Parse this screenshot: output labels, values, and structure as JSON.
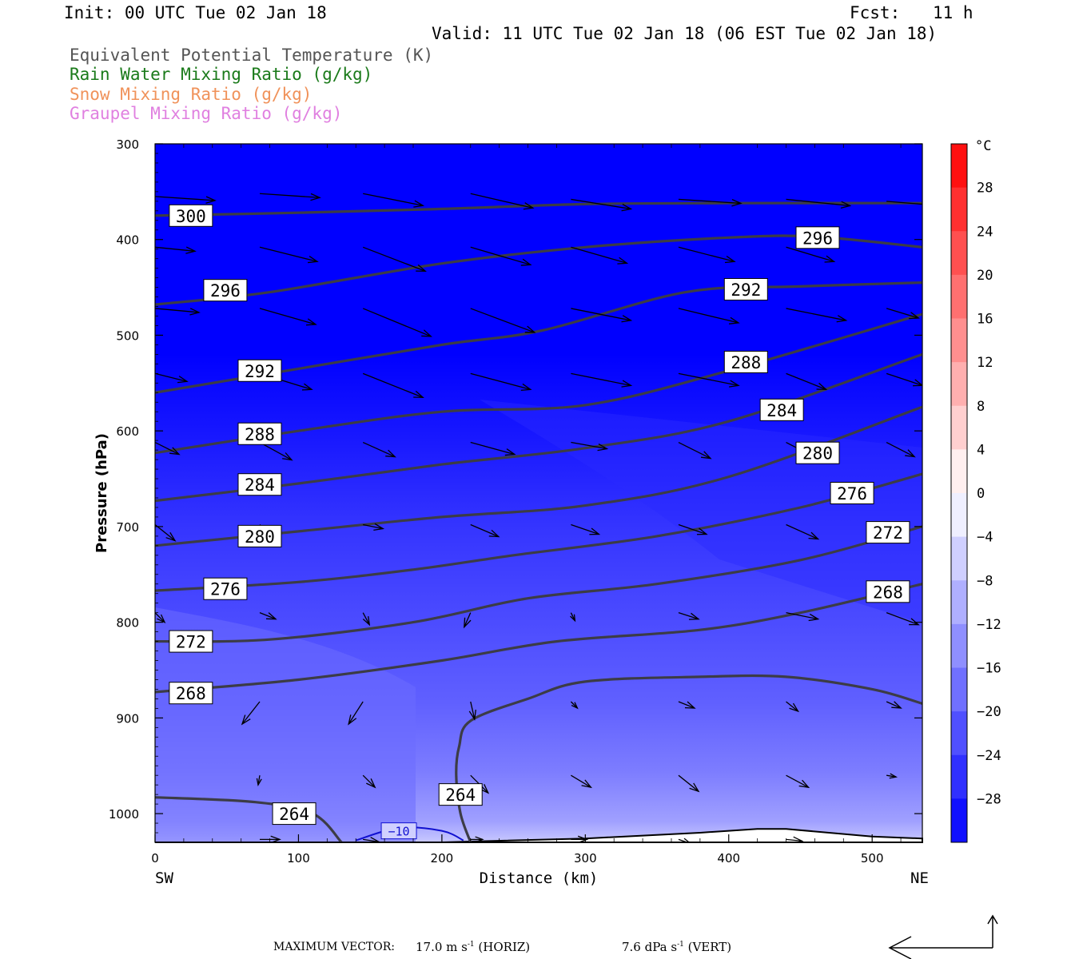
{
  "header": {
    "init": "Init: 00 UTC Tue 02 Jan 18",
    "fcst_label": "Fcst:",
    "fcst_value": "11 h",
    "valid": "Valid: 11 UTC Tue 02 Jan 18 (06 EST Tue 02 Jan 18)"
  },
  "fields": [
    {
      "label": "Equivalent Potential Temperature (K)",
      "color": "#555555"
    },
    {
      "label": "Rain Water Mixing Ratio (g/kg)",
      "color": "#1a7a1a"
    },
    {
      "label": "Snow Mixing Ratio (g/kg)",
      "color": "#f0925a"
    },
    {
      "label": "Graupel Mixing Ratio (g/kg)",
      "color": "#e080e0"
    }
  ],
  "footer": {
    "max_vector_label": "MAXIMUM VECTOR:",
    "horiz_value": "17.0 m s",
    "horiz_unit": "(HORIZ)",
    "vert_value": "7.6 dPa s",
    "vert_unit": "(VERT)",
    "exponent": "-1"
  },
  "chart_data": {
    "type": "contour",
    "xlabel": "Distance (km)",
    "ylabel": "Pressure (hPa)",
    "xlim": [
      0,
      535
    ],
    "ylim": [
      1030,
      300
    ],
    "x_ticks": [
      0,
      100,
      200,
      300,
      400,
      500
    ],
    "y_ticks": [
      300,
      400,
      500,
      600,
      700,
      800,
      900,
      1000
    ],
    "x_end_labels": {
      "left": "SW",
      "right": "NE"
    },
    "colorbar": {
      "unit": "°C",
      "labels": [
        28,
        24,
        20,
        16,
        12,
        8,
        4,
        0,
        -4,
        -8,
        -12,
        -16,
        -20,
        -24,
        -28
      ],
      "min": -32,
      "max": 32,
      "step": 4
    },
    "theta_e_contours": [
      {
        "value": 300,
        "points": [
          [
            0,
            375
          ],
          [
            100,
            372
          ],
          [
            200,
            368
          ],
          [
            300,
            363
          ],
          [
            400,
            362
          ],
          [
            535,
            362
          ]
        ]
      },
      {
        "value": 296,
        "points": [
          [
            0,
            468
          ],
          [
            80,
            455
          ],
          [
            200,
            425
          ],
          [
            300,
            408
          ],
          [
            400,
            398
          ],
          [
            460,
            397
          ],
          [
            535,
            408
          ]
        ]
      },
      {
        "value": 292,
        "points": [
          [
            0,
            560
          ],
          [
            100,
            535
          ],
          [
            200,
            510
          ],
          [
            270,
            495
          ],
          [
            370,
            455
          ],
          [
            450,
            449
          ],
          [
            535,
            445
          ]
        ]
      },
      {
        "value": 288,
        "points": [
          [
            0,
            623
          ],
          [
            100,
            600
          ],
          [
            200,
            580
          ],
          [
            300,
            573
          ],
          [
            400,
            537
          ],
          [
            535,
            478
          ]
        ]
      },
      {
        "value": 284,
        "points": [
          [
            0,
            673
          ],
          [
            100,
            655
          ],
          [
            200,
            635
          ],
          [
            300,
            618
          ],
          [
            400,
            590
          ],
          [
            535,
            520
          ]
        ]
      },
      {
        "value": 280,
        "points": [
          [
            0,
            720
          ],
          [
            100,
            705
          ],
          [
            200,
            690
          ],
          [
            300,
            678
          ],
          [
            400,
            648
          ],
          [
            535,
            575
          ]
        ]
      },
      {
        "value": 276,
        "points": [
          [
            0,
            767
          ],
          [
            100,
            758
          ],
          [
            180,
            745
          ],
          [
            250,
            730
          ],
          [
            350,
            710
          ],
          [
            450,
            680
          ],
          [
            535,
            645
          ]
        ]
      },
      {
        "value": 272,
        "points": [
          [
            0,
            820
          ],
          [
            80,
            818
          ],
          [
            180,
            800
          ],
          [
            260,
            775
          ],
          [
            350,
            760
          ],
          [
            450,
            735
          ],
          [
            535,
            700
          ]
        ]
      },
      {
        "value": 268,
        "points": [
          [
            0,
            873
          ],
          [
            100,
            860
          ],
          [
            200,
            840
          ],
          [
            280,
            820
          ],
          [
            380,
            808
          ],
          [
            450,
            790
          ],
          [
            535,
            760
          ]
        ]
      },
      {
        "value": 264,
        "points": [
          [
            0,
            983
          ],
          [
            70,
            988
          ],
          [
            110,
            1000
          ],
          [
            130,
            1030
          ]
        ]
      },
      {
        "value": 264,
        "points": [
          [
            220,
            1030
          ],
          [
            213,
            1000
          ],
          [
            210,
            960
          ],
          [
            212,
            930
          ],
          [
            220,
            903
          ],
          [
            260,
            880
          ],
          [
            300,
            862
          ],
          [
            380,
            857
          ],
          [
            440,
            857
          ],
          [
            500,
            870
          ],
          [
            535,
            885
          ]
        ]
      }
    ],
    "temp_contours": [
      {
        "value": -10,
        "points": [
          [
            140,
            1028
          ],
          [
            170,
            1015
          ],
          [
            200,
            1018
          ],
          [
            215,
            1028
          ]
        ]
      }
    ],
    "contour_labels": [
      {
        "text": "300",
        "x": 25,
        "y": 375
      },
      {
        "text": "296",
        "x": 49,
        "y": 453
      },
      {
        "text": "296",
        "x": 462,
        "y": 398
      },
      {
        "text": "292",
        "x": 73,
        "y": 537
      },
      {
        "text": "292",
        "x": 412,
        "y": 452
      },
      {
        "text": "288",
        "x": 73,
        "y": 603
      },
      {
        "text": "288",
        "x": 412,
        "y": 528
      },
      {
        "text": "284",
        "x": 73,
        "y": 656
      },
      {
        "text": "284",
        "x": 437,
        "y": 578
      },
      {
        "text": "280",
        "x": 73,
        "y": 710
      },
      {
        "text": "280",
        "x": 462,
        "y": 623
      },
      {
        "text": "276",
        "x": 49,
        "y": 765
      },
      {
        "text": "276",
        "x": 486,
        "y": 665
      },
      {
        "text": "272",
        "x": 25,
        "y": 820
      },
      {
        "text": "272",
        "x": 511,
        "y": 706
      },
      {
        "text": "268",
        "x": 25,
        "y": 874
      },
      {
        "text": "268",
        "x": 511,
        "y": 768
      },
      {
        "text": "264",
        "x": 97,
        "y": 1000
      },
      {
        "text": "264",
        "x": 213,
        "y": 980
      },
      {
        "text": "−10",
        "x": 170,
        "y": 1018
      }
    ],
    "wind_vectors": [
      [
        0,
        355,
        75,
        5
      ],
      [
        73,
        352,
        75,
        5
      ],
      [
        145,
        352,
        75,
        15
      ],
      [
        220,
        352,
        78,
        18
      ],
      [
        290,
        358,
        75,
        12
      ],
      [
        365,
        358,
        78,
        5
      ],
      [
        440,
        358,
        80,
        8
      ],
      [
        510,
        360,
        60,
        5
      ],
      [
        0,
        408,
        50,
        5
      ],
      [
        73,
        408,
        72,
        18
      ],
      [
        145,
        408,
        78,
        30
      ],
      [
        220,
        408,
        75,
        22
      ],
      [
        290,
        408,
        70,
        20
      ],
      [
        365,
        408,
        70,
        18
      ],
      [
        440,
        408,
        60,
        18
      ],
      [
        0,
        472,
        55,
        5
      ],
      [
        73,
        472,
        70,
        20
      ],
      [
        145,
        472,
        85,
        35
      ],
      [
        220,
        472,
        80,
        30
      ],
      [
        290,
        472,
        75,
        15
      ],
      [
        365,
        472,
        75,
        18
      ],
      [
        440,
        472,
        75,
        15
      ],
      [
        510,
        472,
        40,
        12
      ],
      [
        0,
        540,
        40,
        10
      ],
      [
        73,
        540,
        65,
        20
      ],
      [
        145,
        540,
        75,
        30
      ],
      [
        220,
        540,
        75,
        20
      ],
      [
        290,
        540,
        75,
        15
      ],
      [
        365,
        540,
        75,
        15
      ],
      [
        440,
        540,
        50,
        20
      ],
      [
        510,
        540,
        45,
        15
      ],
      [
        0,
        612,
        30,
        15
      ],
      [
        73,
        612,
        40,
        22
      ],
      [
        145,
        612,
        40,
        18
      ],
      [
        220,
        612,
        55,
        15
      ],
      [
        290,
        612,
        45,
        8
      ],
      [
        365,
        612,
        40,
        20
      ],
      [
        440,
        612,
        35,
        18
      ],
      [
        510,
        612,
        35,
        18
      ],
      [
        0,
        698,
        25,
        20
      ],
      [
        73,
        698,
        20,
        20
      ],
      [
        145,
        698,
        25,
        5
      ],
      [
        220,
        698,
        35,
        15
      ],
      [
        290,
        698,
        35,
        12
      ],
      [
        365,
        698,
        35,
        12
      ],
      [
        440,
        698,
        40,
        18
      ],
      [
        510,
        698,
        18,
        8
      ],
      [
        0,
        790,
        12,
        12
      ],
      [
        73,
        790,
        20,
        8
      ],
      [
        145,
        790,
        8,
        15
      ],
      [
        220,
        790,
        -8,
        18
      ],
      [
        290,
        790,
        5,
        10
      ],
      [
        365,
        790,
        25,
        8
      ],
      [
        440,
        790,
        40,
        8
      ],
      [
        510,
        790,
        40,
        15
      ],
      [
        73,
        883,
        -22,
        28
      ],
      [
        145,
        883,
        -18,
        28
      ],
      [
        220,
        883,
        5,
        22
      ],
      [
        290,
        883,
        8,
        8
      ],
      [
        365,
        883,
        20,
        8
      ],
      [
        440,
        883,
        15,
        12
      ],
      [
        510,
        883,
        18,
        8
      ],
      [
        73,
        960,
        -2,
        12
      ],
      [
        145,
        960,
        15,
        15
      ],
      [
        220,
        960,
        22,
        22
      ],
      [
        290,
        960,
        25,
        15
      ],
      [
        365,
        960,
        25,
        20
      ],
      [
        440,
        960,
        28,
        15
      ],
      [
        510,
        960,
        12,
        2
      ],
      [
        73,
        1027,
        25,
        0
      ],
      [
        145,
        1027,
        20,
        3
      ],
      [
        220,
        1027,
        15,
        0
      ],
      [
        290,
        1027,
        20,
        0
      ],
      [
        365,
        1027,
        15,
        5
      ],
      [
        440,
        1027,
        20,
        2
      ]
    ],
    "temperature_field": "cold (below −28 °C) aloft warming to near 0 °C at the surface",
    "background_colors": {
      "cold": "#0000ff",
      "warm": "#ff0000"
    }
  },
  "max_arrow": {
    "color": "#000000"
  }
}
